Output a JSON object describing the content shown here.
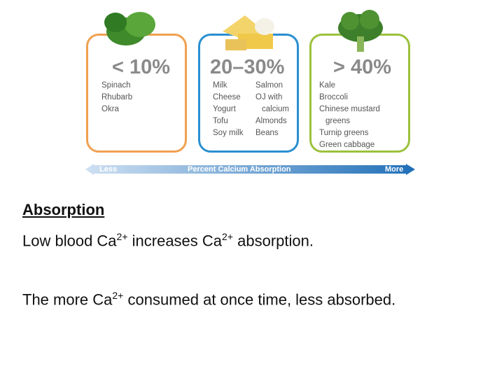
{
  "figure": {
    "panels": [
      {
        "percent": "< 10%",
        "columns": [
          [
            "Spinach",
            "Rhubarb",
            "Okra"
          ]
        ]
      },
      {
        "percent": "20–30%",
        "columns": [
          [
            "Milk",
            "Cheese",
            "Yogurt",
            "Tofu",
            "Soy milk"
          ],
          [
            "Salmon",
            "OJ with",
            "calcium",
            "Almonds",
            "Beans"
          ]
        ]
      },
      {
        "percent": "> 40%",
        "columns": [
          [
            "Kale",
            "Broccoli",
            "Chinese mustard",
            "greens",
            "Turnip greens",
            "Green cabbage"
          ]
        ]
      }
    ],
    "arrow": {
      "left": "Less",
      "center": "Percent Calcium Absorption",
      "right": "More"
    }
  },
  "body": {
    "heading": "Absorption",
    "line1": [
      "Low blood Ca",
      "2+",
      "increases Ca",
      "2+",
      "absorption."
    ],
    "line2": [
      "The more Ca",
      "2+",
      "consumed at once time, less absorbed."
    ]
  }
}
